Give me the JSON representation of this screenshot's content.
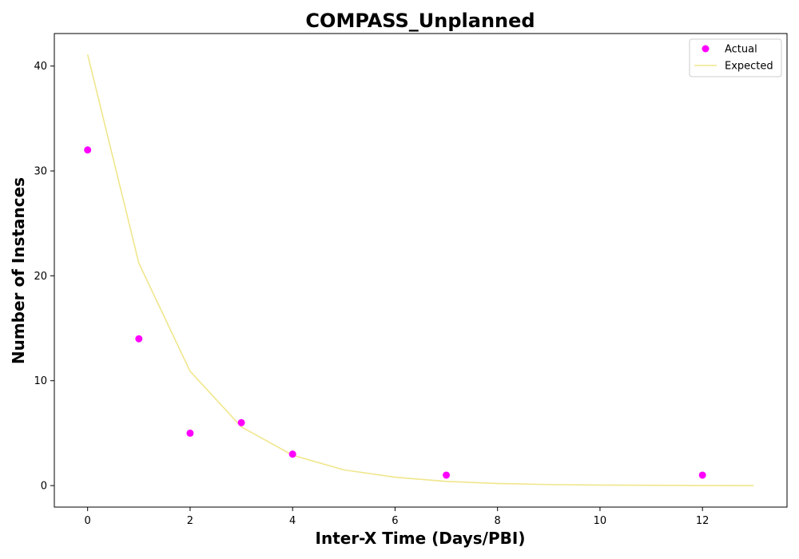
{
  "chart_data": {
    "type": "scatter",
    "title": "COMPASS_Unplanned",
    "xlabel": "Inter-X Time (Days/PBI)",
    "ylabel": "Number of Instances",
    "xlim": [
      -0.65,
      13.65
    ],
    "ylim": [
      -2.05,
      43.1
    ],
    "x_ticks": [
      0,
      2,
      4,
      6,
      8,
      10,
      12
    ],
    "y_ticks": [
      0,
      10,
      20,
      30,
      40
    ],
    "grid": false,
    "legend_position": "top-right",
    "series": [
      {
        "name": "Actual",
        "kind": "scatter",
        "color": "#ff00ff",
        "points": [
          {
            "x": 0,
            "y": 32
          },
          {
            "x": 1,
            "y": 14
          },
          {
            "x": 2,
            "y": 5
          },
          {
            "x": 3,
            "y": 6
          },
          {
            "x": 4,
            "y": 3
          },
          {
            "x": 7,
            "y": 1
          },
          {
            "x": 12,
            "y": 1
          }
        ]
      },
      {
        "name": "Expected",
        "kind": "line",
        "color": "#f0e68c",
        "points": [
          {
            "x": 0,
            "y": 41.1
          },
          {
            "x": 1,
            "y": 21.2
          },
          {
            "x": 2,
            "y": 10.9
          },
          {
            "x": 3,
            "y": 5.6
          },
          {
            "x": 4,
            "y": 2.9
          },
          {
            "x": 5,
            "y": 1.5
          },
          {
            "x": 6,
            "y": 0.8
          },
          {
            "x": 7,
            "y": 0.4
          },
          {
            "x": 8,
            "y": 0.2
          },
          {
            "x": 9,
            "y": 0.1
          },
          {
            "x": 10,
            "y": 0.05
          },
          {
            "x": 11,
            "y": 0.03
          },
          {
            "x": 12,
            "y": 0.01
          },
          {
            "x": 13,
            "y": 0.0
          }
        ]
      }
    ]
  }
}
